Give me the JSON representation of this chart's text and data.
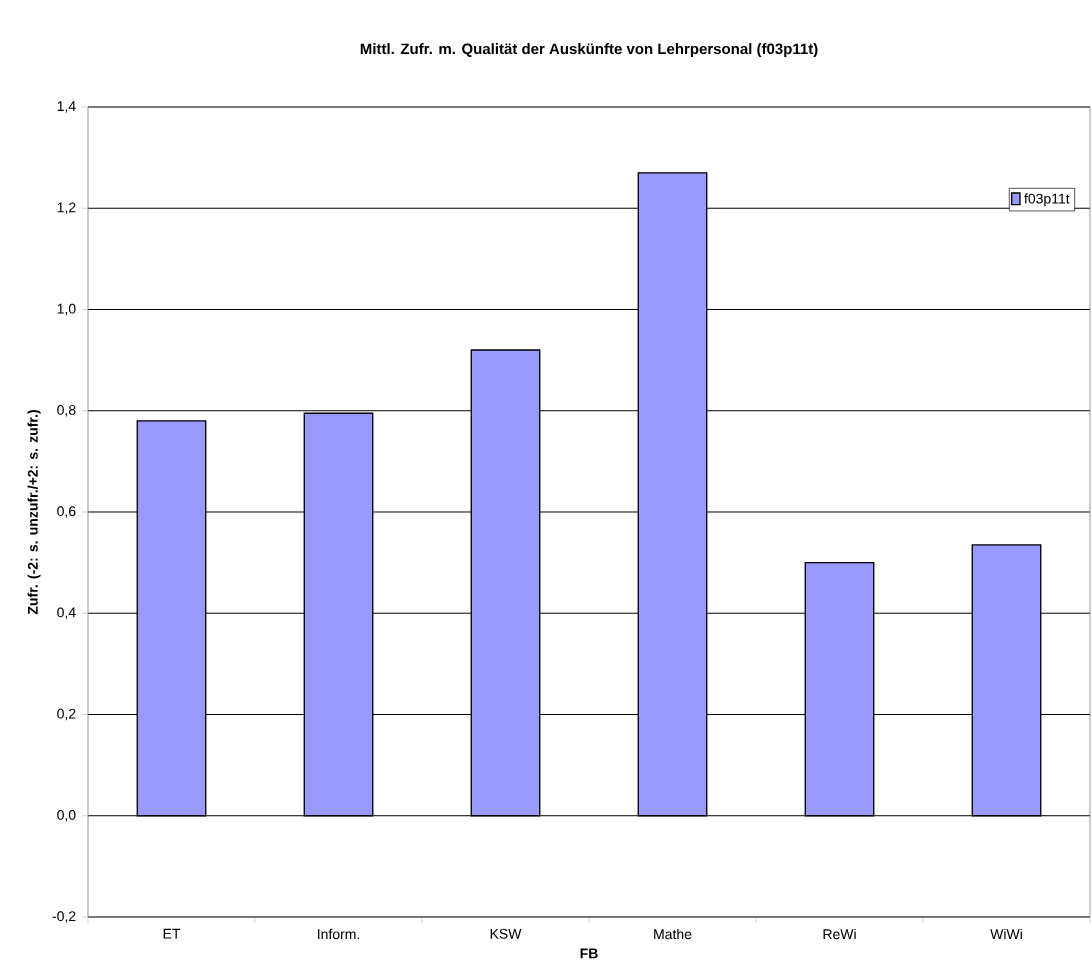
{
  "chart_data": {
    "type": "bar",
    "title": "Mittl. Zufr. m. Qualität der Auskünfte von Lehrpersonal (f03p11t)",
    "xlabel": "FB",
    "ylabel": "Zufr. (-2: s. unzufr./+2: s. zufr.)",
    "categories": [
      "ET",
      "Inform.",
      "KSW",
      "Mathe",
      "ReWi",
      "WiWi"
    ],
    "series": [
      {
        "name": "f03p11t",
        "color": "#9999ff",
        "values": [
          0.78,
          0.795,
          0.92,
          1.27,
          0.5,
          0.535
        ]
      }
    ],
    "ylim": [
      -0.2,
      1.4
    ],
    "yticks": [
      {
        "value": -0.2,
        "label": "-0,2"
      },
      {
        "value": 0,
        "label": "0,0"
      },
      {
        "value": 0.2,
        "label": "0,2"
      },
      {
        "value": 0.4,
        "label": "0,4"
      },
      {
        "value": 0.6,
        "label": "0,6"
      },
      {
        "value": 0.8,
        "label": "0,8"
      },
      {
        "value": 1.0,
        "label": "1,0"
      },
      {
        "value": 1.2,
        "label": "1,2"
      },
      {
        "value": 1.4,
        "label": "1,4"
      }
    ],
    "grid": "y",
    "legend": "top right"
  }
}
